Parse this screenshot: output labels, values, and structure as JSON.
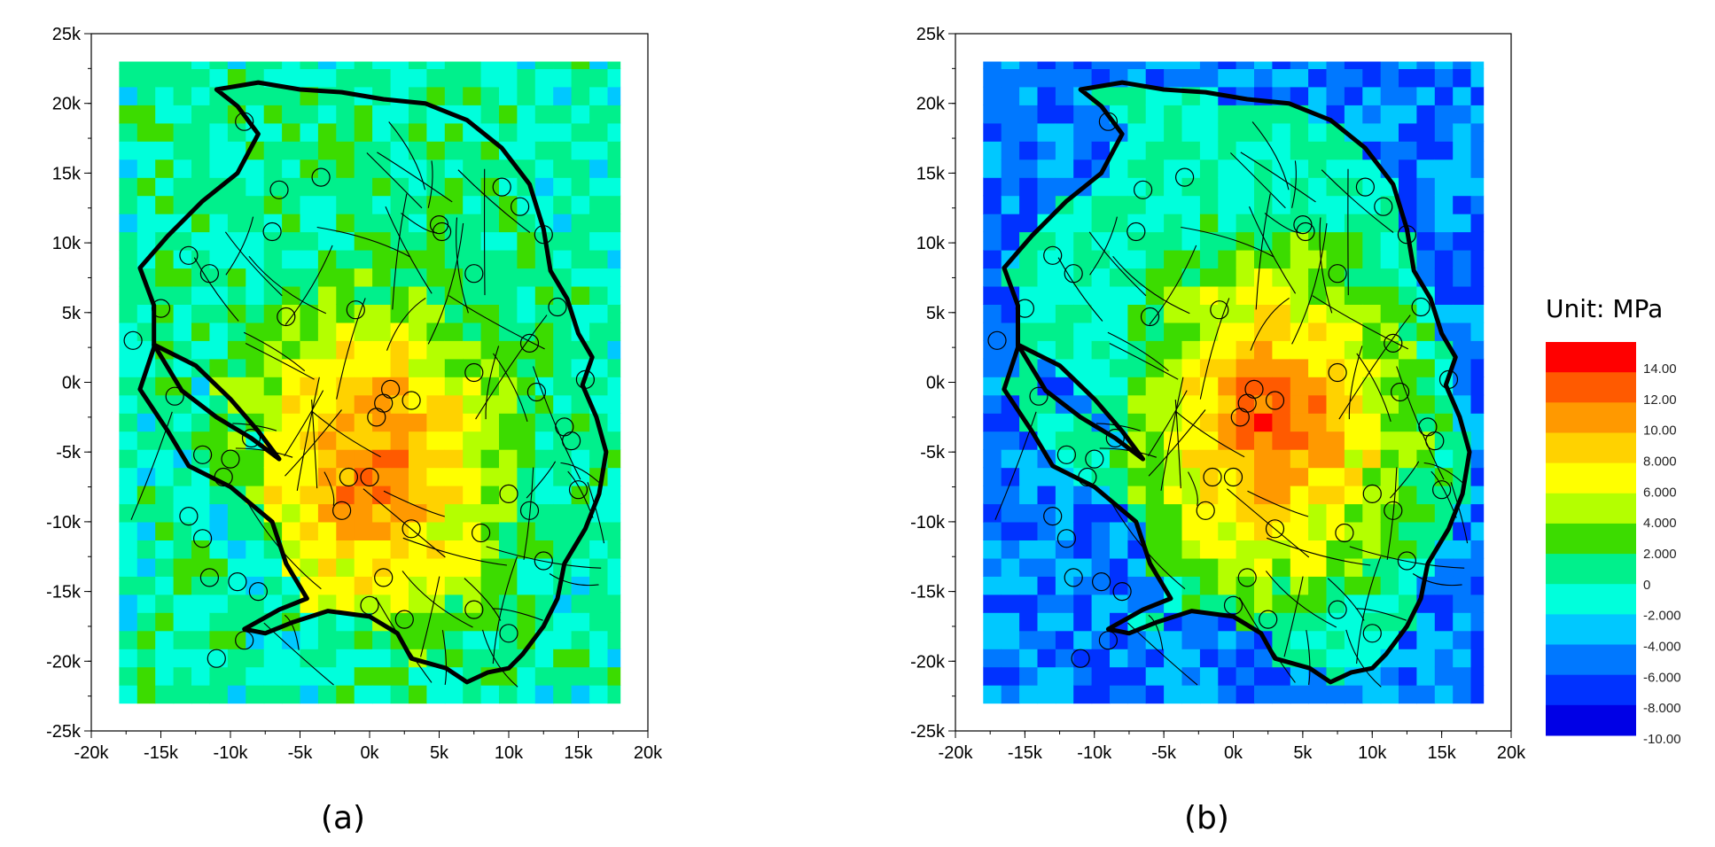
{
  "chart_data": [
    {
      "type": "heatmap",
      "panel_label": "(a)",
      "x_ticks": [
        "-20k",
        "-15k",
        "-10k",
        "-5k",
        "0k",
        "5k",
        "10k",
        "15k",
        "20k"
      ],
      "y_ticks": [
        "25k",
        "20k",
        "15k",
        "10k",
        "5k",
        "0k",
        "-5k",
        "-10k",
        "-15k",
        "-20k",
        "-25k"
      ],
      "xlim": [
        -20000,
        20000
      ],
      "ylim": [
        -25000,
        25000
      ],
      "grid_extent": {
        "x": [
          -18000,
          18000
        ],
        "y": [
          -23000,
          23000
        ]
      },
      "field_center": {
        "x": 0,
        "y": -6000
      },
      "peak_value": 11,
      "rim_value": -1,
      "outside_value": -2
    },
    {
      "type": "heatmap",
      "panel_label": "(b)",
      "x_ticks": [
        "-20k",
        "-15k",
        "-10k",
        "-5k",
        "0k",
        "5k",
        "10k",
        "15k",
        "20k"
      ],
      "y_ticks": [
        "25k",
        "20k",
        "15k",
        "10k",
        "5k",
        "0k",
        "-5k",
        "-10k",
        "-15k",
        "-20k",
        "-25k"
      ],
      "xlim": [
        -20000,
        20000
      ],
      "ylim": [
        -25000,
        25000
      ],
      "grid_extent": {
        "x": [
          -18000,
          18000
        ],
        "y": [
          -23000,
          23000
        ]
      },
      "field_center": {
        "x": 3000,
        "y": -3000
      },
      "peak_value": 12,
      "rim_value": -2,
      "outside_value": -7
    }
  ],
  "legend": {
    "title": "Unit: MPa",
    "labels": [
      "14.00",
      "12.00",
      "10.00",
      "8.000",
      "6.000",
      "4.000",
      "2.000",
      "0",
      "-2.000",
      "-4.000",
      "-6.000",
      "-8.000",
      "-10.00"
    ],
    "colors": [
      "#ff0000",
      "#ff5a00",
      "#ff9900",
      "#ffd200",
      "#ffff00",
      "#b4ff00",
      "#3cdc00",
      "#00f08c",
      "#00ffdc",
      "#00c8ff",
      "#0078ff",
      "#0032ff",
      "#0000e6"
    ]
  },
  "outline_polygon": [
    [
      -11000,
      21000
    ],
    [
      -8000,
      21500
    ],
    [
      -5000,
      21000
    ],
    [
      -2000,
      20800
    ],
    [
      1000,
      20300
    ],
    [
      4000,
      20000
    ],
    [
      7000,
      18800
    ],
    [
      9500,
      16800
    ],
    [
      11500,
      14200
    ],
    [
      12500,
      11000
    ],
    [
      13000,
      8000
    ],
    [
      14200,
      6000
    ],
    [
      15000,
      3500
    ],
    [
      16000,
      1800
    ],
    [
      15300,
      -200
    ],
    [
      16300,
      -2500
    ],
    [
      17000,
      -5000
    ],
    [
      16500,
      -8000
    ],
    [
      15500,
      -10500
    ],
    [
      14000,
      -13000
    ],
    [
      13500,
      -15500
    ],
    [
      12500,
      -17500
    ],
    [
      11000,
      -19500
    ],
    [
      10000,
      -20500
    ],
    [
      8500,
      -20800
    ],
    [
      7000,
      -21500
    ],
    [
      5500,
      -20500
    ],
    [
      3000,
      -19800
    ],
    [
      2000,
      -18000
    ],
    [
      0,
      -16800
    ],
    [
      -3000,
      -16400
    ],
    [
      -5500,
      -17200
    ],
    [
      -7500,
      -18000
    ],
    [
      -9000,
      -17700
    ],
    [
      -6500,
      -16300
    ],
    [
      -4500,
      -15500
    ],
    [
      -6000,
      -13000
    ],
    [
      -7000,
      -10000
    ],
    [
      -10000,
      -7500
    ],
    [
      -13000,
      -6000
    ],
    [
      -14500,
      -3500
    ],
    [
      -16500,
      -500
    ],
    [
      -15500,
      2500
    ],
    [
      -15500,
      5500
    ],
    [
      -16500,
      8200
    ],
    [
      -14500,
      10500
    ],
    [
      -12000,
      13000
    ],
    [
      -9500,
      15000
    ],
    [
      -8000,
      17800
    ],
    [
      -9500,
      19800
    ],
    [
      -11000,
      21000
    ]
  ],
  "wedge_polygon": [
    [
      -15500,
      2700
    ],
    [
      -12500,
      1200
    ],
    [
      -10000,
      -1200
    ],
    [
      -8000,
      -3500
    ],
    [
      -6500,
      -5500
    ],
    [
      -8500,
      -4000
    ],
    [
      -11000,
      -2500
    ],
    [
      -13500,
      -600
    ]
  ],
  "wells": [
    [
      -9000,
      18700
    ],
    [
      -3500,
      14700
    ],
    [
      -6500,
      13800
    ],
    [
      -7000,
      10800
    ],
    [
      -13000,
      9100
    ],
    [
      -11500,
      7800
    ],
    [
      -15000,
      5300
    ],
    [
      -6000,
      4700
    ],
    [
      -1000,
      5200
    ],
    [
      5000,
      11300
    ],
    [
      5200,
      10800
    ],
    [
      7500,
      7800
    ],
    [
      9500,
      14000
    ],
    [
      10800,
      12600
    ],
    [
      12500,
      10600
    ],
    [
      13500,
      5400
    ],
    [
      11500,
      2800
    ],
    [
      15500,
      200
    ],
    [
      12000,
      -700
    ],
    [
      14000,
      -3200
    ],
    [
      14500,
      -4200
    ],
    [
      15000,
      -7700
    ],
    [
      11500,
      -9200
    ],
    [
      10000,
      -8000
    ],
    [
      8000,
      -10800
    ],
    [
      12500,
      -12800
    ],
    [
      10000,
      -18000
    ],
    [
      7500,
      -16300
    ],
    [
      3000,
      -10500
    ],
    [
      1000,
      -14000
    ],
    [
      -2000,
      -9200
    ],
    [
      -1500,
      -6800
    ],
    [
      0,
      -6800
    ],
    [
      500,
      -2500
    ],
    [
      1000,
      -1500
    ],
    [
      1500,
      -500
    ],
    [
      3000,
      -1300
    ],
    [
      7500,
      700
    ],
    [
      -10000,
      -5500
    ],
    [
      -12000,
      -5200
    ],
    [
      -10500,
      -6800
    ],
    [
      -13000,
      -9600
    ],
    [
      -12000,
      -11200
    ],
    [
      -11500,
      -14000
    ],
    [
      -9500,
      -14300
    ],
    [
      -8000,
      -15000
    ],
    [
      -9000,
      -18500
    ],
    [
      -11000,
      -19800
    ],
    [
      -17000,
      3000
    ],
    [
      -14000,
      -1000
    ],
    [
      -8500,
      -4000
    ],
    [
      0,
      -16000
    ],
    [
      2500,
      -17000
    ]
  ]
}
